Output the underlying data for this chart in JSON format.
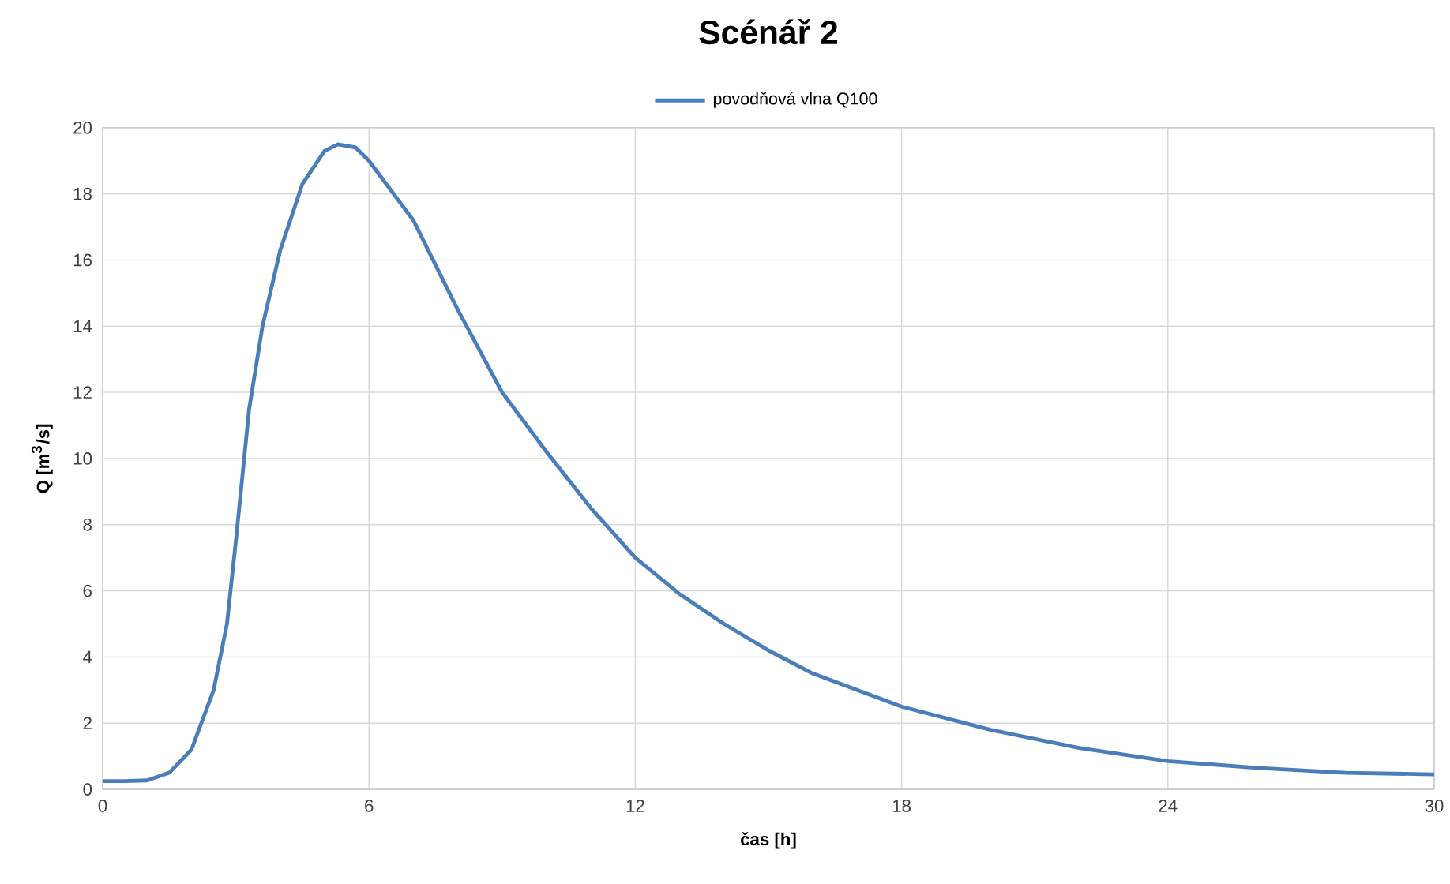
{
  "chart_data": {
    "type": "line",
    "title": "Scénář  2",
    "xlabel": "čas [h]",
    "ylabel": "Q [m$^{3}$/s]",
    "x": [
      0,
      0.5,
      1,
      1.5,
      2,
      2.5,
      2.8,
      3,
      3.3,
      3.6,
      4,
      4.5,
      5,
      5.3,
      5.7,
      6,
      7,
      8,
      9,
      10,
      11,
      12,
      13,
      14,
      15,
      16,
      17,
      18,
      20,
      22,
      24,
      26,
      28,
      30
    ],
    "series": [
      {
        "name": "povodňová vlna Q100",
        "color": "#4a7ebb",
        "values": [
          0.25,
          0.25,
          0.27,
          0.5,
          1.2,
          3.0,
          5.0,
          7.5,
          11.5,
          14.0,
          16.3,
          18.3,
          19.3,
          19.5,
          19.4,
          19.0,
          17.2,
          14.5,
          12.0,
          10.2,
          8.5,
          7.0,
          5.9,
          5.0,
          4.2,
          3.5,
          3.0,
          2.5,
          1.8,
          1.25,
          0.85,
          0.65,
          0.5,
          0.45
        ]
      }
    ],
    "xlim": [
      0,
      30
    ],
    "xticks": [
      0,
      6,
      12,
      18,
      24,
      30
    ],
    "ylim": [
      0,
      20
    ],
    "yticks": [
      0,
      2,
      4,
      6,
      8,
      10,
      12,
      14,
      16,
      18,
      20
    ],
    "grid": true,
    "legend": "top",
    "marker": "none",
    "line_style": "solid"
  }
}
